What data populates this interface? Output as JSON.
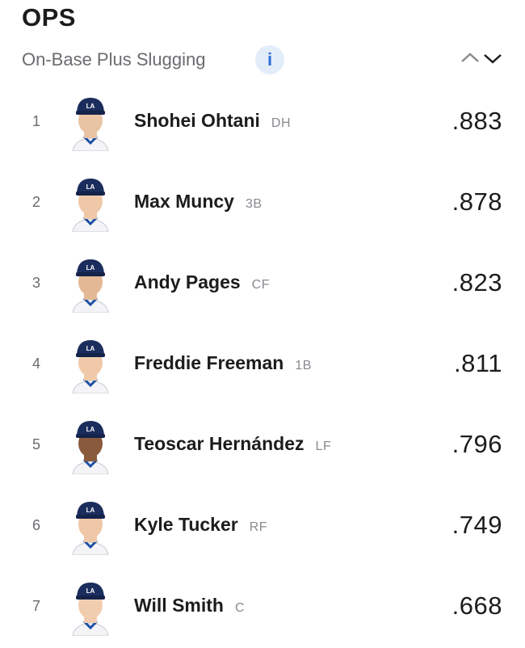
{
  "header": {
    "title": "OPS",
    "subtitle": "On-Base Plus Slugging"
  },
  "rows": [
    {
      "rank": "1",
      "name": "Shohei Ohtani",
      "position": "DH",
      "value": ".883"
    },
    {
      "rank": "2",
      "name": "Max Muncy",
      "position": "3B",
      "value": ".878"
    },
    {
      "rank": "3",
      "name": "Andy Pages",
      "position": "CF",
      "value": ".823"
    },
    {
      "rank": "4",
      "name": "Freddie Freeman",
      "position": "1B",
      "value": ".811"
    },
    {
      "rank": "5",
      "name": "Teoscar Hernández",
      "position": "LF",
      "value": ".796"
    },
    {
      "rank": "6",
      "name": "Kyle Tucker",
      "position": "RF",
      "value": ".749"
    },
    {
      "rank": "7",
      "name": "Will Smith",
      "position": "C",
      "value": ".668"
    }
  ]
}
